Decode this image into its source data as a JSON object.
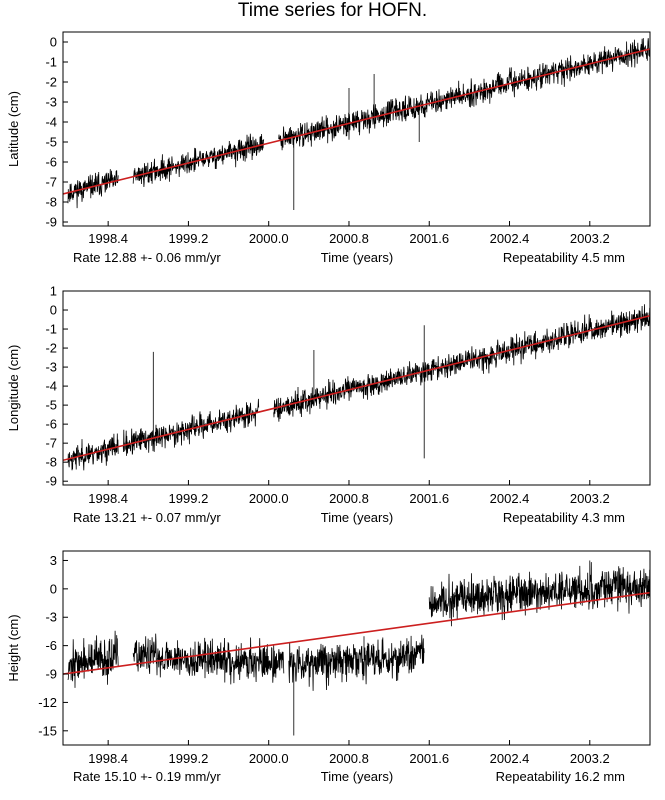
{
  "page": {
    "title": "Time series for HOFN."
  },
  "colors": {
    "data": "#000000",
    "trend": "#cc1f1f",
    "frame": "#000000",
    "background": "#ffffff"
  },
  "chart_data": [
    {
      "type": "line",
      "ylabel": "Latitude (cm)",
      "xlabel": "Time (years)",
      "rate_text": "Rate 12.88 +- 0.06 mm/yr",
      "repeatability_text": "Repeatability 4.5 mm",
      "xlim": [
        1997.95,
        2003.8
      ],
      "ylim": [
        -9.2,
        0.5
      ],
      "x_ticks": [
        1998.4,
        1999.2,
        2000.0,
        2000.8,
        2001.6,
        2002.4,
        2003.2
      ],
      "x_tick_labels": [
        "1998.4",
        "1999.2",
        "2000.0",
        "2000.8",
        "2001.6",
        "2002.4",
        "2003.2"
      ],
      "y_ticks": [
        0,
        -1,
        -2,
        -3,
        -4,
        -5,
        -6,
        -7,
        -8,
        -9
      ],
      "y_tick_labels": [
        "0",
        "-1",
        "-2",
        "-3",
        "-4",
        "-5",
        "-6",
        "-7",
        "-8",
        "-9"
      ],
      "grid": false,
      "series": [
        {
          "values": {
            "segments": [
              [
                1998.0,
                1998.5
              ],
              [
                1998.65,
                1999.95
              ],
              [
                2000.1,
                2003.8
              ]
            ],
            "spread": 0.9,
            "seed": 11,
            "spikes": [
              [
                2000.25,
                -8.4
              ],
              [
                2001.05,
                -1.6
              ],
              [
                2001.5,
                -5.0
              ],
              [
                2000.8,
                -2.3
              ]
            ]
          }
        }
      ],
      "trend": {
        "x": [
          1997.95,
          2003.8
        ],
        "y": [
          -7.6,
          -0.35
        ]
      }
    },
    {
      "type": "line",
      "ylabel": "Longitude (cm)",
      "xlabel": "Time (years)",
      "rate_text": "Rate 13.21 +- 0.07 mm/yr",
      "repeatability_text": "Repeatability 4.3 mm",
      "xlim": [
        1997.95,
        2003.8
      ],
      "ylim": [
        -9.2,
        1.0
      ],
      "x_ticks": [
        1998.4,
        1999.2,
        2000.0,
        2000.8,
        2001.6,
        2002.4,
        2003.2
      ],
      "x_tick_labels": [
        "1998.4",
        "1999.2",
        "2000.0",
        "2000.8",
        "2001.6",
        "2002.4",
        "2003.2"
      ],
      "y_ticks": [
        1,
        0,
        -1,
        -2,
        -3,
        -4,
        -5,
        -6,
        -7,
        -8,
        -9
      ],
      "y_tick_labels": [
        "1",
        "0",
        "-1",
        "-2",
        "-3",
        "-4",
        "-5",
        "-6",
        "-7",
        "-8",
        "-9"
      ],
      "grid": false,
      "series": [
        {
          "values": {
            "segments": [
              [
                1998.0,
                1998.5
              ],
              [
                1998.55,
                1999.9
              ],
              [
                2000.05,
                2003.8
              ]
            ],
            "spread": 1.0,
            "seed": 23,
            "spikes": [
              [
                1998.85,
                -2.2
              ],
              [
                2001.55,
                -7.8
              ],
              [
                2001.55,
                -0.8
              ],
              [
                2000.45,
                -2.1
              ]
            ]
          }
        }
      ],
      "trend": {
        "x": [
          1997.95,
          2003.8
        ],
        "y": [
          -7.9,
          -0.3
        ]
      }
    },
    {
      "type": "line",
      "ylabel": "Height (cm)",
      "xlabel": "Time (years)",
      "rate_text": "Rate 15.10 +- 0.19 mm/yr",
      "repeatability_text": "Repeatability 16.2 mm",
      "xlim": [
        1997.95,
        2003.8
      ],
      "ylim": [
        -16.5,
        4.0
      ],
      "x_ticks": [
        1998.4,
        1999.2,
        2000.0,
        2000.8,
        2001.6,
        2002.4,
        2003.2
      ],
      "x_tick_labels": [
        "1998.4",
        "1999.2",
        "2000.0",
        "2000.8",
        "2001.6",
        "2002.4",
        "2003.2"
      ],
      "y_ticks": [
        3,
        0,
        -3,
        -6,
        -9,
        -12,
        -15
      ],
      "y_tick_labels": [
        "3",
        "0",
        "-3",
        "-6",
        "-9",
        "-12",
        "-15"
      ],
      "grid": false,
      "series": [
        {
          "values": {
            "segments": [
              [
                1998.0,
                1998.5
              ],
              [
                1998.65,
                2000.15
              ],
              [
                2000.2,
                2001.55
              ],
              [
                2001.6,
                2003.8
              ]
            ],
            "spread": 3.2,
            "seed": 37,
            "levels": [
              [
                1998.0,
                -8.0
              ],
              [
                1998.6,
                -7.0
              ],
              [
                1999.5,
                -7.5
              ],
              [
                2000.2,
                -7.8
              ],
              [
                2001.0,
                -7.5
              ],
              [
                2001.55,
                -7.0
              ],
              [
                2001.6,
                -1.5
              ],
              [
                2002.4,
                -0.5
              ],
              [
                2003.8,
                0.3
              ]
            ],
            "spikes": [
              [
                2000.25,
                -15.5
              ],
              [
                2000.95,
                -5.0
              ],
              [
                2003.2,
                3.0
              ]
            ]
          }
        }
      ],
      "trend": {
        "x": [
          1997.95,
          2003.8
        ],
        "y": [
          -9.0,
          -0.4
        ]
      }
    }
  ]
}
